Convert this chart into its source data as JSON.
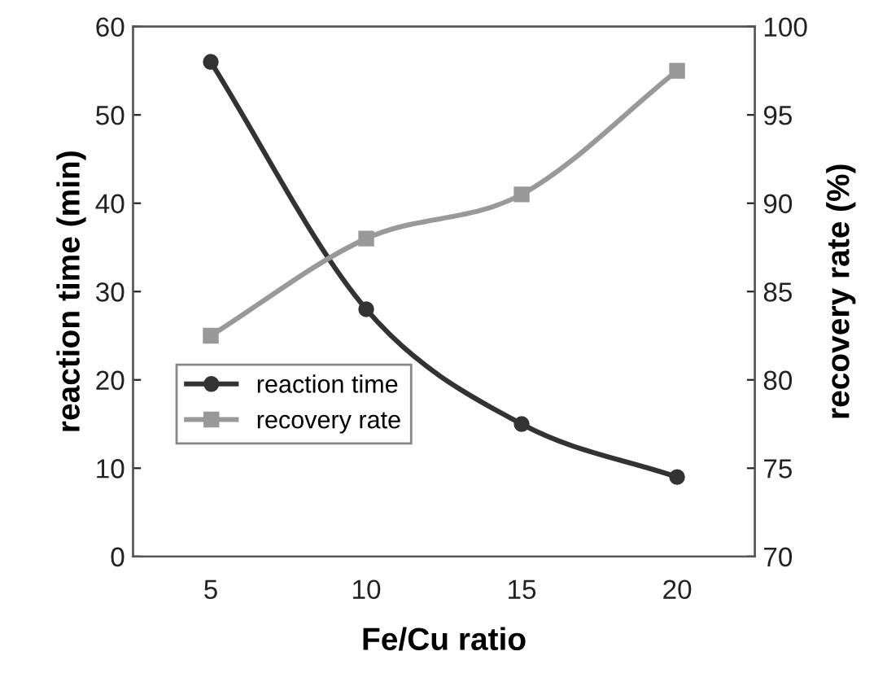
{
  "chart_data": {
    "type": "line",
    "xlabel": "Fe/Cu ratio",
    "ylabel": "reaction time (min)",
    "y2label": "recovery rate (%)",
    "x": [
      5,
      10,
      15,
      20
    ],
    "xlim": [
      2.5,
      22.5
    ],
    "xticks": [
      5,
      10,
      15,
      20
    ],
    "ylim": [
      0,
      60
    ],
    "yticks": [
      0,
      10,
      20,
      30,
      40,
      50,
      60
    ],
    "y2lim": [
      70,
      100
    ],
    "y2ticks": [
      70,
      75,
      80,
      85,
      90,
      95,
      100
    ],
    "series": [
      {
        "name": "reaction time",
        "color": "#333333",
        "marker": "circle",
        "values": [
          56,
          28,
          15,
          9
        ]
      },
      {
        "name": "recovery rate",
        "color": "#999999",
        "marker": "square",
        "axis": "y2",
        "values": [
          82.5,
          88,
          90.5,
          97.5
        ]
      }
    ],
    "legend": "bottom left",
    "grid": false,
    "line_style": "solid"
  }
}
